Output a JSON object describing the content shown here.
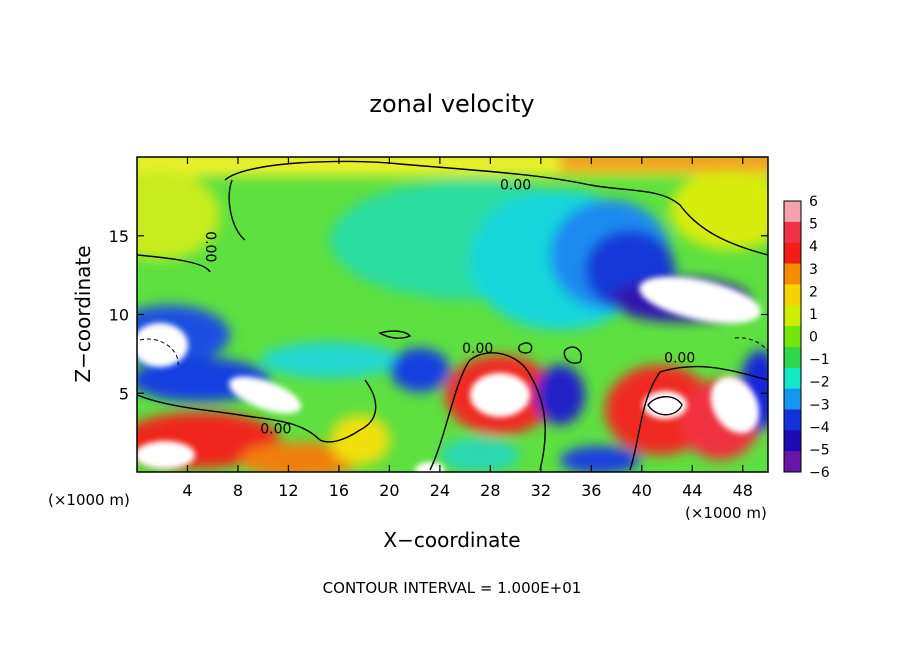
{
  "chart_data": {
    "type": "heatmap",
    "title": "zonal velocity",
    "xlabel": "X−coordinate",
    "ylabel": "Z−coordinate",
    "x_unit_label_left": "(×1000 m)",
    "x_unit_label_right": "(×1000 m)",
    "xlim": [
      0,
      50
    ],
    "ylim": [
      0,
      20
    ],
    "x_ticks": [
      {
        "value": 4,
        "label": "4"
      },
      {
        "value": 8,
        "label": "8"
      },
      {
        "value": 12,
        "label": "12"
      },
      {
        "value": 16,
        "label": "16"
      },
      {
        "value": 20,
        "label": "20"
      },
      {
        "value": 24,
        "label": "24"
      },
      {
        "value": 28,
        "label": "28"
      },
      {
        "value": 32,
        "label": "32"
      },
      {
        "value": 36,
        "label": "36"
      },
      {
        "value": 40,
        "label": "40"
      },
      {
        "value": 44,
        "label": "44"
      },
      {
        "value": 48,
        "label": "48"
      }
    ],
    "y_ticks": [
      {
        "value": 5,
        "label": "5"
      },
      {
        "value": 10,
        "label": "10"
      },
      {
        "value": 15,
        "label": "15"
      }
    ],
    "colorbar": {
      "levels": [
        "6",
        "5",
        "4",
        "3",
        "2",
        "1",
        "0",
        "−1",
        "−2",
        "−3",
        "−4",
        "−5",
        "−6"
      ],
      "colors": [
        "#f4a3ae",
        "#f03246",
        "#f01e14",
        "#f58c00",
        "#f5d200",
        "#cdee00",
        "#73e60a",
        "#2ed84a",
        "#14e6c8",
        "#1496f0",
        "#1432dc",
        "#1e0ab4",
        "#6a14a8"
      ]
    },
    "contour_labels": [
      {
        "text": "0.00",
        "x": 30.0,
        "z": 18.2,
        "rotate": 0
      },
      {
        "text": "0.00",
        "x": 5.8,
        "z": 14.3,
        "rotate": 90
      },
      {
        "text": "0.00",
        "x": 27.0,
        "z": 7.8,
        "rotate": 0
      },
      {
        "text": "0.00",
        "x": 43.0,
        "z": 7.2,
        "rotate": 0
      },
      {
        "text": "0.00",
        "x": 11.0,
        "z": 2.7,
        "rotate": 0
      }
    ],
    "footnote": "CONTOUR INTERVAL = 1.000E+01"
  }
}
